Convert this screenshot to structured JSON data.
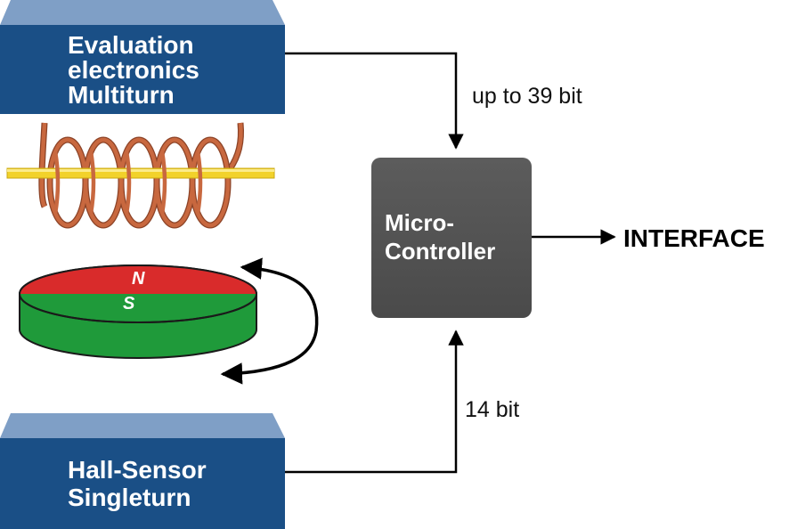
{
  "eval_box": {
    "lines": [
      "Evaluation",
      "electronics",
      "Multiturn"
    ]
  },
  "hall_box": {
    "lines": [
      "Hall-Sensor",
      "Singleturn"
    ]
  },
  "mcu_box": {
    "lines": [
      "Micro-",
      "Controller"
    ]
  },
  "labels": {
    "top_arrow": "up to 39 bit",
    "bottom_arrow": "14 bit",
    "interface": "INTERFACE"
  },
  "magnet": {
    "north": "N",
    "south": "S"
  },
  "colors": {
    "box_blue": "#1a4f86",
    "box_top_blue": "#7f9fc6",
    "mcu_gray": "#555555",
    "coil_copper": "#c8683f",
    "rod_yellow": "#f2d22a",
    "magnet_red": "#d92b2b",
    "magnet_green": "#1f9a3a"
  }
}
